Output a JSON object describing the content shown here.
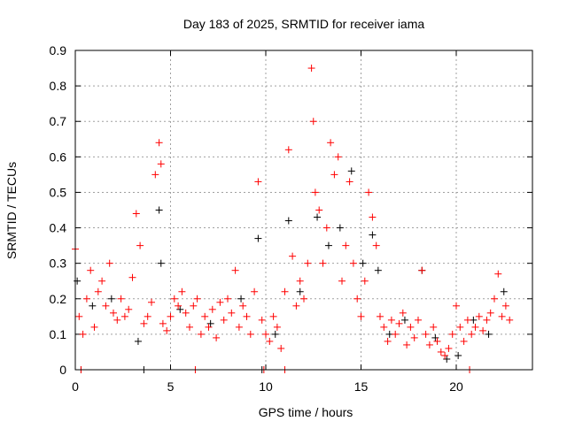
{
  "chart_data": {
    "type": "scatter",
    "title": "Day 183 of 2025, SRMTID for receiver iama",
    "xlabel": "GPS time / hours",
    "ylabel": "SRMTID / TECUs",
    "xlim": [
      0,
      24
    ],
    "ylim": [
      0,
      0.9
    ],
    "xticks": [
      0,
      5,
      10,
      15,
      20
    ],
    "xtick_labels": [
      "0",
      "5",
      "10",
      "15",
      "20"
    ],
    "yticks": [
      0,
      0.1,
      0.2,
      0.3,
      0.4,
      0.5,
      0.6,
      0.7,
      0.8,
      0.9
    ],
    "ytick_labels": [
      "0",
      "0.1",
      "0.2",
      "0.3",
      "0.4",
      "0.5",
      "0.6",
      "0.7",
      "0.8",
      "0.9"
    ],
    "grid": true,
    "series": [
      {
        "name": "black",
        "color": "#000000",
        "points": [
          [
            0.1,
            0.25
          ],
          [
            0.9,
            0.18
          ],
          [
            1.9,
            0.2
          ],
          [
            3.3,
            0.08
          ],
          [
            4.4,
            0.45
          ],
          [
            4.5,
            0.3
          ],
          [
            5.5,
            0.17
          ],
          [
            7.1,
            0.13
          ],
          [
            8.7,
            0.2
          ],
          [
            9.6,
            0.37
          ],
          [
            10.5,
            0.1
          ],
          [
            11.2,
            0.42
          ],
          [
            11.8,
            0.22
          ],
          [
            12.7,
            0.43
          ],
          [
            13.3,
            0.35
          ],
          [
            13.9,
            0.4
          ],
          [
            14.5,
            0.56
          ],
          [
            15.1,
            0.3
          ],
          [
            15.6,
            0.38
          ],
          [
            15.9,
            0.28
          ],
          [
            16.5,
            0.1
          ],
          [
            17.3,
            0.14
          ],
          [
            18.2,
            0.28
          ],
          [
            18.9,
            0.09
          ],
          [
            19.5,
            0.03
          ],
          [
            20.1,
            0.04
          ],
          [
            20.9,
            0.14
          ],
          [
            21.7,
            0.1
          ],
          [
            22.5,
            0.22
          ],
          [
            0.3,
            0
          ],
          [
            3.6,
            0
          ],
          [
            9.8,
            0
          ],
          [
            11.0,
            0
          ]
        ]
      },
      {
        "name": "red",
        "color": "#ff0000",
        "points": [
          [
            0.0,
            0.34
          ],
          [
            0.2,
            0.15
          ],
          [
            0.4,
            0.1
          ],
          [
            0.6,
            0.2
          ],
          [
            0.8,
            0.28
          ],
          [
            1.0,
            0.12
          ],
          [
            1.2,
            0.22
          ],
          [
            1.4,
            0.25
          ],
          [
            1.6,
            0.18
          ],
          [
            1.8,
            0.3
          ],
          [
            2.0,
            0.16
          ],
          [
            2.2,
            0.14
          ],
          [
            2.4,
            0.2
          ],
          [
            2.6,
            0.15
          ],
          [
            2.8,
            0.17
          ],
          [
            3.0,
            0.26
          ],
          [
            3.2,
            0.44
          ],
          [
            3.4,
            0.35
          ],
          [
            3.6,
            0.13
          ],
          [
            3.8,
            0.15
          ],
          [
            4.0,
            0.19
          ],
          [
            4.2,
            0.55
          ],
          [
            4.4,
            0.64
          ],
          [
            4.5,
            0.58
          ],
          [
            4.6,
            0.13
          ],
          [
            4.8,
            0.11
          ],
          [
            5.0,
            0.15
          ],
          [
            5.2,
            0.2
          ],
          [
            5.4,
            0.18
          ],
          [
            5.6,
            0.22
          ],
          [
            5.8,
            0.16
          ],
          [
            6.0,
            0.12
          ],
          [
            6.2,
            0.18
          ],
          [
            6.4,
            0.2
          ],
          [
            6.6,
            0.1
          ],
          [
            6.8,
            0.15
          ],
          [
            7.0,
            0.12
          ],
          [
            7.2,
            0.17
          ],
          [
            7.4,
            0.09
          ],
          [
            7.6,
            0.19
          ],
          [
            7.8,
            0.14
          ],
          [
            8.0,
            0.2
          ],
          [
            8.2,
            0.16
          ],
          [
            8.4,
            0.28
          ],
          [
            8.6,
            0.12
          ],
          [
            8.8,
            0.18
          ],
          [
            9.0,
            0.15
          ],
          [
            9.2,
            0.1
          ],
          [
            9.4,
            0.22
          ],
          [
            9.6,
            0.53
          ],
          [
            9.8,
            0.14
          ],
          [
            10.0,
            0.1
          ],
          [
            10.2,
            0.08
          ],
          [
            10.4,
            0.15
          ],
          [
            10.6,
            0.12
          ],
          [
            10.8,
            0.06
          ],
          [
            11.0,
            0.22
          ],
          [
            11.2,
            0.62
          ],
          [
            11.4,
            0.32
          ],
          [
            11.6,
            0.18
          ],
          [
            11.8,
            0.25
          ],
          [
            12.0,
            0.2
          ],
          [
            12.2,
            0.3
          ],
          [
            12.4,
            0.85
          ],
          [
            12.5,
            0.7
          ],
          [
            12.6,
            0.5
          ],
          [
            12.8,
            0.45
          ],
          [
            13.0,
            0.3
          ],
          [
            13.2,
            0.4
          ],
          [
            13.4,
            0.64
          ],
          [
            13.6,
            0.55
          ],
          [
            13.8,
            0.6
          ],
          [
            14.0,
            0.25
          ],
          [
            14.2,
            0.35
          ],
          [
            14.4,
            0.53
          ],
          [
            14.6,
            0.3
          ],
          [
            14.8,
            0.2
          ],
          [
            15.0,
            0.15
          ],
          [
            15.2,
            0.25
          ],
          [
            15.4,
            0.5
          ],
          [
            15.6,
            0.43
          ],
          [
            15.8,
            0.35
          ],
          [
            16.0,
            0.15
          ],
          [
            16.2,
            0.12
          ],
          [
            16.4,
            0.08
          ],
          [
            16.6,
            0.14
          ],
          [
            16.8,
            0.1
          ],
          [
            17.0,
            0.13
          ],
          [
            17.2,
            0.16
          ],
          [
            17.4,
            0.07
          ],
          [
            17.6,
            0.12
          ],
          [
            17.8,
            0.09
          ],
          [
            18.0,
            0.14
          ],
          [
            18.2,
            0.28
          ],
          [
            18.4,
            0.1
          ],
          [
            18.6,
            0.07
          ],
          [
            18.8,
            0.12
          ],
          [
            19.0,
            0.08
          ],
          [
            19.2,
            0.05
          ],
          [
            19.4,
            0.04
          ],
          [
            19.6,
            0.06
          ],
          [
            19.8,
            0.1
          ],
          [
            20.0,
            0.18
          ],
          [
            20.2,
            0.12
          ],
          [
            20.4,
            0.08
          ],
          [
            20.6,
            0.14
          ],
          [
            20.8,
            0.1
          ],
          [
            21.0,
            0.12
          ],
          [
            21.2,
            0.15
          ],
          [
            21.4,
            0.11
          ],
          [
            21.6,
            0.14
          ],
          [
            21.8,
            0.16
          ],
          [
            22.0,
            0.2
          ],
          [
            22.2,
            0.27
          ],
          [
            22.4,
            0.15
          ],
          [
            22.6,
            0.18
          ],
          [
            22.8,
            0.14
          ],
          [
            0.3,
            0
          ],
          [
            6.3,
            0
          ],
          [
            9.9,
            0
          ],
          [
            11.0,
            0
          ],
          [
            20.7,
            0
          ]
        ]
      }
    ]
  }
}
